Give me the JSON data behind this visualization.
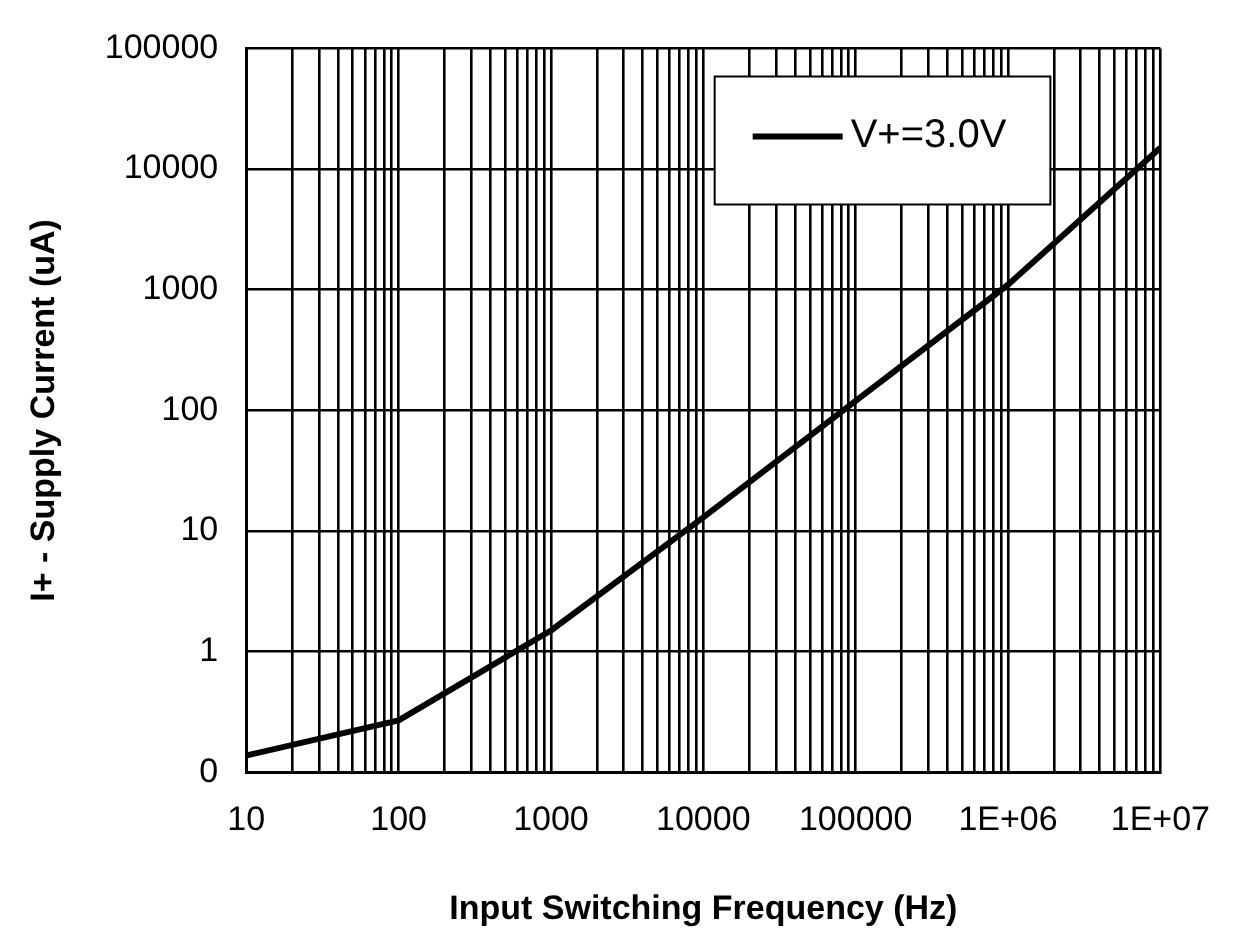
{
  "chart_data": {
    "type": "line",
    "xlabel": "Input Switching Frequency (Hz)",
    "ylabel": "I+ - Supply Current (uA)",
    "log": "xy",
    "grid": true,
    "legend": "top right",
    "marker": "none",
    "line_style": "solid",
    "x": [
      10,
      100,
      1000,
      10000,
      100000,
      1000000,
      10000000
    ],
    "series": [
      {
        "name": "V+=3.0V",
        "color": "#000000",
        "values": [
          0.138,
          0.27,
          1.5,
          13,
          120,
          1100,
          15000
        ]
      }
    ],
    "xlim": [
      10,
      10000000
    ],
    "ylim": [
      0.1,
      100000
    ],
    "xticks": [
      10,
      {
        "value": 20,
        "label": null
      },
      {
        "value": 30,
        "label": null
      },
      {
        "value": 40,
        "label": null
      },
      {
        "value": 50,
        "label": null
      },
      {
        "value": 60,
        "label": null
      },
      {
        "value": 70,
        "label": null
      },
      {
        "value": 80,
        "label": null
      },
      {
        "value": 90,
        "label": null
      },
      100,
      {
        "value": 200,
        "label": null
      },
      {
        "value": 300,
        "label": null
      },
      {
        "value": 400,
        "label": null
      },
      {
        "value": 500,
        "label": null
      },
      {
        "value": 600,
        "label": null
      },
      {
        "value": 700,
        "label": null
      },
      {
        "value": 800,
        "label": null
      },
      {
        "value": 900,
        "label": null
      },
      1000,
      {
        "value": 2000,
        "label": null
      },
      {
        "value": 3000,
        "label": null
      },
      {
        "value": 4000,
        "label": null
      },
      {
        "value": 5000,
        "label": null
      },
      {
        "value": 6000,
        "label": null
      },
      {
        "value": 7000,
        "label": null
      },
      {
        "value": 8000,
        "label": null
      },
      {
        "value": 9000,
        "label": null
      },
      10000,
      {
        "value": 20000,
        "label": null
      },
      {
        "value": 30000,
        "label": null
      },
      {
        "value": 40000,
        "label": null
      },
      {
        "value": 50000,
        "label": null
      },
      {
        "value": 60000,
        "label": null
      },
      {
        "value": 70000,
        "label": null
      },
      {
        "value": 80000,
        "label": null
      },
      {
        "value": 90000,
        "label": null
      },
      100000,
      {
        "value": 200000,
        "label": null
      },
      {
        "value": 300000,
        "label": null
      },
      {
        "value": 400000,
        "label": null
      },
      {
        "value": 500000,
        "label": null
      },
      {
        "value": 600000,
        "label": null
      },
      {
        "value": 700000,
        "label": null
      },
      {
        "value": 800000,
        "label": null
      },
      {
        "value": 900000,
        "label": null
      },
      {
        "value": 1000000,
        "label": "1E+06"
      },
      {
        "value": 2000000,
        "label": null
      },
      {
        "value": 3000000,
        "label": null
      },
      {
        "value": 4000000,
        "label": null
      },
      {
        "value": 5000000,
        "label": null
      },
      {
        "value": 6000000,
        "label": null
      },
      {
        "value": 7000000,
        "label": null
      },
      {
        "value": 8000000,
        "label": null
      },
      {
        "value": 9000000,
        "label": null
      },
      {
        "value": 10000000,
        "label": "1E+07"
      }
    ],
    "yticks": [
      {
        "value": 0.1,
        "label": "0"
      },
      1,
      10,
      100,
      1000,
      10000,
      100000
    ]
  }
}
